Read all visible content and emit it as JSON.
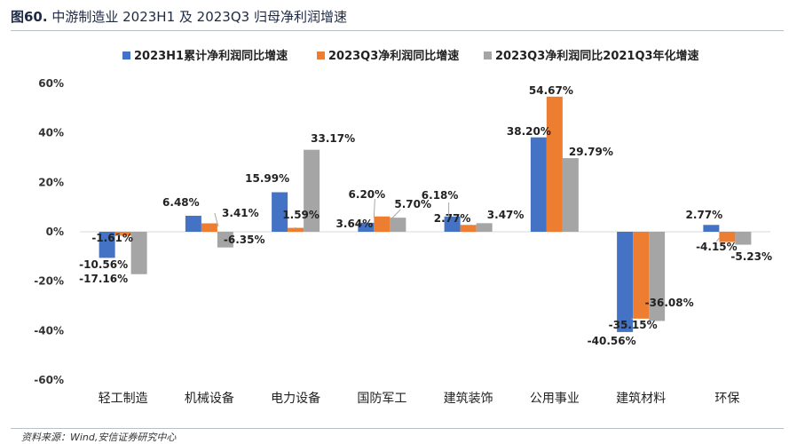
{
  "figure": {
    "number": "图60.",
    "title": "中游制造业 2023H1 及 2023Q3 归母净利润增速"
  },
  "source": "资料来源：Wind,安信证券研究中心",
  "colors": {
    "series": [
      "#4472C4",
      "#ED7D31",
      "#A5A5A5"
    ],
    "axis": "#d9d9d9"
  },
  "chart_data": {
    "type": "bar",
    "title": "",
    "xlabel": "",
    "ylabel": "",
    "ylim": [
      -60,
      60
    ],
    "yticks": [
      60,
      40,
      20,
      0,
      -20,
      -40,
      -60
    ],
    "ytick_labels": [
      "60%",
      "40%",
      "20%",
      "0%",
      "-20%",
      "-40%",
      "-60%"
    ],
    "grid": false,
    "legend_position": "top",
    "categories": [
      "轻工制造",
      "机械设备",
      "电力设备",
      "国防军工",
      "建筑装饰",
      "公用事业",
      "建筑材料",
      "环保"
    ],
    "series": [
      {
        "name": "2023H1累计净利润同比增速",
        "values": [
          -10.56,
          6.48,
          15.99,
          3.64,
          6.18,
          38.2,
          -40.56,
          2.77
        ],
        "labels": [
          "-10.56%",
          "6.48%",
          "15.99%",
          "3.64%",
          "6.18%",
          "38.20%",
          "-40.56%",
          "2.77%"
        ]
      },
      {
        "name": "2023Q3净利润同比增速",
        "values": [
          -1.61,
          3.41,
          1.59,
          6.2,
          2.77,
          54.67,
          -35.15,
          -4.15
        ],
        "labels": [
          "-1.61%",
          "3.41%",
          "1.59%",
          "6.20%",
          "2.77%",
          "54.67%",
          "-35.15%",
          "-4.15%"
        ]
      },
      {
        "name": "2023Q3净利润同比2021Q3年化增速",
        "values": [
          -17.16,
          -6.35,
          33.17,
          5.7,
          3.47,
          29.79,
          -36.08,
          -5.23
        ],
        "labels": [
          "-17.16%",
          "-6.35%",
          "33.17%",
          "5.70%",
          "3.47%",
          "29.79%",
          "-36.08%",
          "-5.23%"
        ]
      }
    ]
  }
}
